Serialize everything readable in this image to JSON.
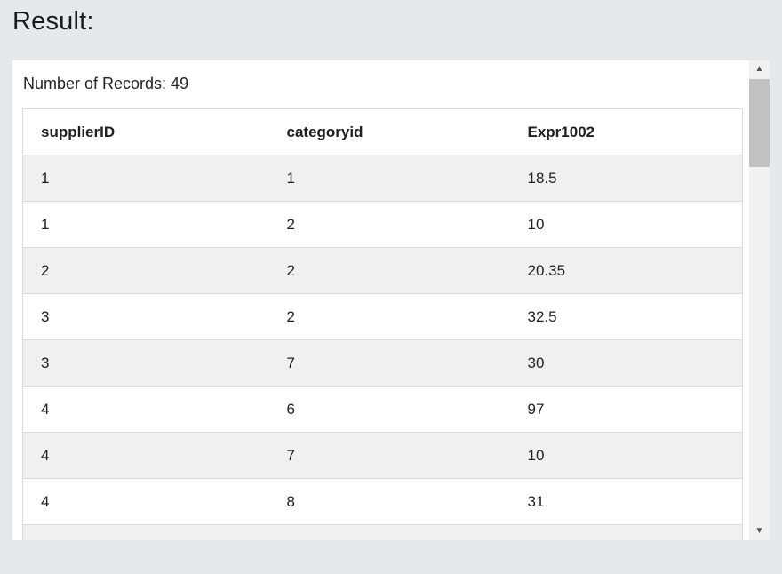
{
  "page": {
    "title": "Result:"
  },
  "panel": {
    "records_text": "Number of Records: 49"
  },
  "table": {
    "columns": [
      "supplierID",
      "categoryid",
      "Expr1002"
    ],
    "rows": [
      [
        "1",
        "1",
        "18.5"
      ],
      [
        "1",
        "2",
        "10"
      ],
      [
        "2",
        "2",
        "20.35"
      ],
      [
        "3",
        "2",
        "32.5"
      ],
      [
        "3",
        "7",
        "30"
      ],
      [
        "4",
        "6",
        "97"
      ],
      [
        "4",
        "7",
        "10"
      ],
      [
        "4",
        "8",
        "31"
      ]
    ]
  },
  "scrollbar": {
    "up_icon": "▲",
    "down_icon": "▼"
  },
  "colors": {
    "page_background": "#e7e8e9",
    "panel_background": "#ffffff",
    "row_stripe": "#f0f0f0",
    "table_border": "#d9d9d9",
    "scrollbar_track": "#f1f1f1",
    "scrollbar_thumb": "#c1c1c1",
    "scrollbar_arrow": "#505050",
    "text": "#1f1f1f"
  }
}
